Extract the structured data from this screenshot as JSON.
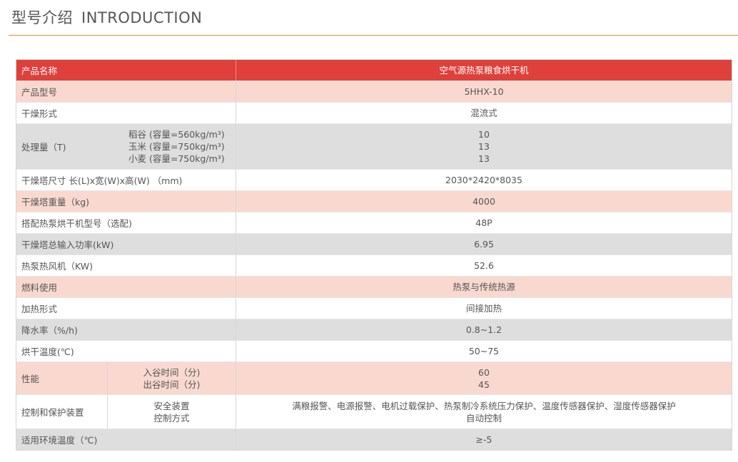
{
  "header": {
    "title_cn": "型号介绍",
    "title_en": "INTRODUCTION"
  },
  "colors": {
    "accent_rule": "#f08a2c",
    "header_bg": "#df403b",
    "pink_row": "#f9d9cf",
    "gray_row": "#dedede"
  },
  "table": {
    "head": {
      "label": "产品名称",
      "value": "空气源热泵粮食烘干机"
    },
    "rows": [
      {
        "label": "产品型号",
        "sub": [],
        "values": [
          "5HHX-10"
        ],
        "bg": "pink"
      },
      {
        "label": "干燥形式",
        "sub": [],
        "values": [
          "混流式"
        ],
        "bg": "white"
      },
      {
        "label": "处理量（T)",
        "sub": [
          "稻谷 (容量=560kg/m³)",
          "玉米 (容量=750kg/m³)",
          "小麦 (容量=750kg/m³)"
        ],
        "values": [
          "10",
          "13",
          "13"
        ],
        "bg": "gray",
        "divider": false
      },
      {
        "label": "干燥塔尺寸 长(L)x宽(W)x高(W) （mm)",
        "sub": [],
        "values": [
          "2030*2420*8035"
        ],
        "bg": "white"
      },
      {
        "label": "干燥塔重量（kg)",
        "sub": [],
        "values": [
          "4000"
        ],
        "bg": "pink"
      },
      {
        "label": "搭配热泵烘干机型号（选配)",
        "sub": [],
        "values": [
          "48P"
        ],
        "bg": "white"
      },
      {
        "label": "干燥塔总输入功率(kW)",
        "sub": [],
        "values": [
          "6.95"
        ],
        "bg": "gray"
      },
      {
        "label": "热泵热风机（KW)",
        "sub": [],
        "values": [
          "52.6"
        ],
        "bg": "white"
      },
      {
        "label": "燃料使用",
        "sub": [],
        "values": [
          "热泵与传统热源"
        ],
        "bg": "pink"
      },
      {
        "label": "加热形式",
        "sub": [],
        "values": [
          "间接加热"
        ],
        "bg": "white"
      },
      {
        "label": "降水率（%/h)",
        "sub": [],
        "values": [
          "0.8~1.2"
        ],
        "bg": "gray"
      },
      {
        "label": "烘干温度(℃)",
        "sub": [],
        "values": [
          "50~75"
        ],
        "bg": "white"
      },
      {
        "label": "性能",
        "sub": [
          "入谷时间（分)",
          "出谷时间（分)"
        ],
        "values": [
          "60",
          "45"
        ],
        "bg": "pink",
        "divider": true
      },
      {
        "label": "控制和保护装置",
        "sub": [
          "安全装置",
          "控制方式"
        ],
        "values": [
          "满粮报警、电源报警、电机过载保护、热泵制冷系统压力保护、温度传感器保护、湿度传感器保护",
          "自动控制"
        ],
        "bg": "white",
        "divider": true
      },
      {
        "label": "适用环境温度（℃)",
        "sub": [],
        "values": [
          "≥-5"
        ],
        "bg": "gray"
      }
    ]
  }
}
